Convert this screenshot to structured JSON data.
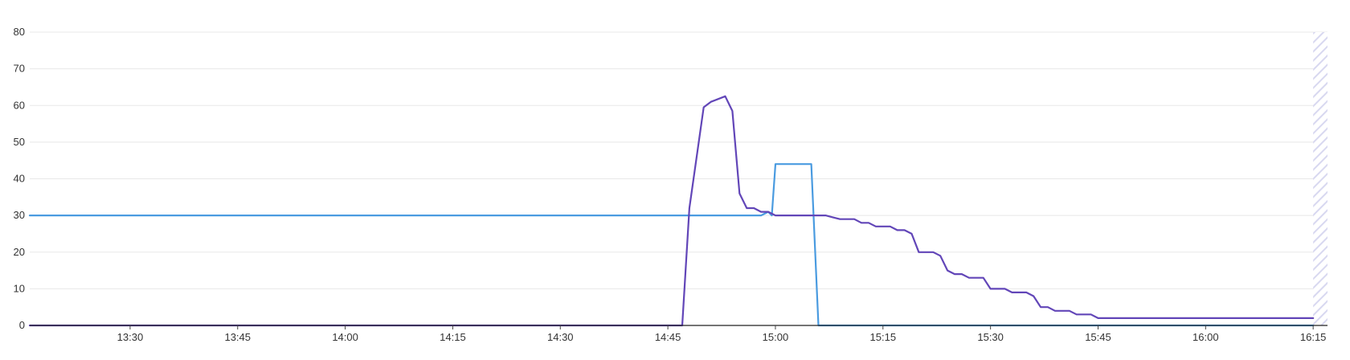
{
  "chart_data": {
    "type": "line",
    "title": "",
    "xlabel": "",
    "ylabel": "",
    "ylim": [
      0,
      80
    ],
    "xlim": [
      "13:16",
      "16:17"
    ],
    "grid": true,
    "y_ticks": [
      "0",
      "10",
      "20",
      "30",
      "40",
      "50",
      "60",
      "70",
      "80"
    ],
    "x_ticks": [
      "13:30",
      "13:45",
      "14:00",
      "14:15",
      "14:30",
      "14:45",
      "15:00",
      "15:15",
      "15:30",
      "15:45",
      "16:00",
      "16:15"
    ],
    "hatched_region_start": "16:15",
    "colors": {
      "series_a": "#4a9be0",
      "series_b": "#6246b8",
      "hatch": "#d8d8f0"
    },
    "series": [
      {
        "color": "#4a9be0",
        "points": [
          [
            "13:16",
            30
          ],
          [
            "14:58",
            30
          ],
          [
            "14:59",
            31
          ],
          [
            "14:59.5",
            30
          ],
          [
            "15:00",
            44
          ],
          [
            "15:05",
            44
          ],
          [
            "15:06",
            0
          ],
          [
            "16:15",
            0
          ]
        ]
      },
      {
        "color": "#6246b8",
        "points": [
          [
            "13:16",
            0
          ],
          [
            "14:47",
            0
          ],
          [
            "14:48",
            32
          ],
          [
            "14:50",
            59.5
          ],
          [
            "14:51",
            61
          ],
          [
            "14:53",
            62.5
          ],
          [
            "14:54",
            58.5
          ],
          [
            "14:55",
            36
          ],
          [
            "14:56",
            32
          ],
          [
            "14:57",
            32
          ],
          [
            "14:58",
            31
          ],
          [
            "14:59",
            31
          ],
          [
            "15:00",
            30
          ],
          [
            "15:07",
            30
          ],
          [
            "15:08",
            29.5
          ],
          [
            "15:09",
            29
          ],
          [
            "15:11",
            29
          ],
          [
            "15:12",
            28
          ],
          [
            "15:13",
            28
          ],
          [
            "15:14",
            27
          ],
          [
            "15:16",
            27
          ],
          [
            "15:17",
            26
          ],
          [
            "15:18",
            26
          ],
          [
            "15:19",
            25
          ],
          [
            "15:20",
            20
          ],
          [
            "15:22",
            20
          ],
          [
            "15:23",
            19
          ],
          [
            "15:24",
            15
          ],
          [
            "15:25",
            14
          ],
          [
            "15:26",
            14
          ],
          [
            "15:27",
            13
          ],
          [
            "15:29",
            13
          ],
          [
            "15:30",
            10
          ],
          [
            "15:32",
            10
          ],
          [
            "15:33",
            9
          ],
          [
            "15:35",
            9
          ],
          [
            "15:36",
            8
          ],
          [
            "15:37",
            5
          ],
          [
            "15:38",
            5
          ],
          [
            "15:39",
            4
          ],
          [
            "15:41",
            4
          ],
          [
            "15:42",
            3
          ],
          [
            "15:44",
            3
          ],
          [
            "15:45",
            2
          ],
          [
            "16:15",
            2
          ]
        ]
      }
    ]
  }
}
